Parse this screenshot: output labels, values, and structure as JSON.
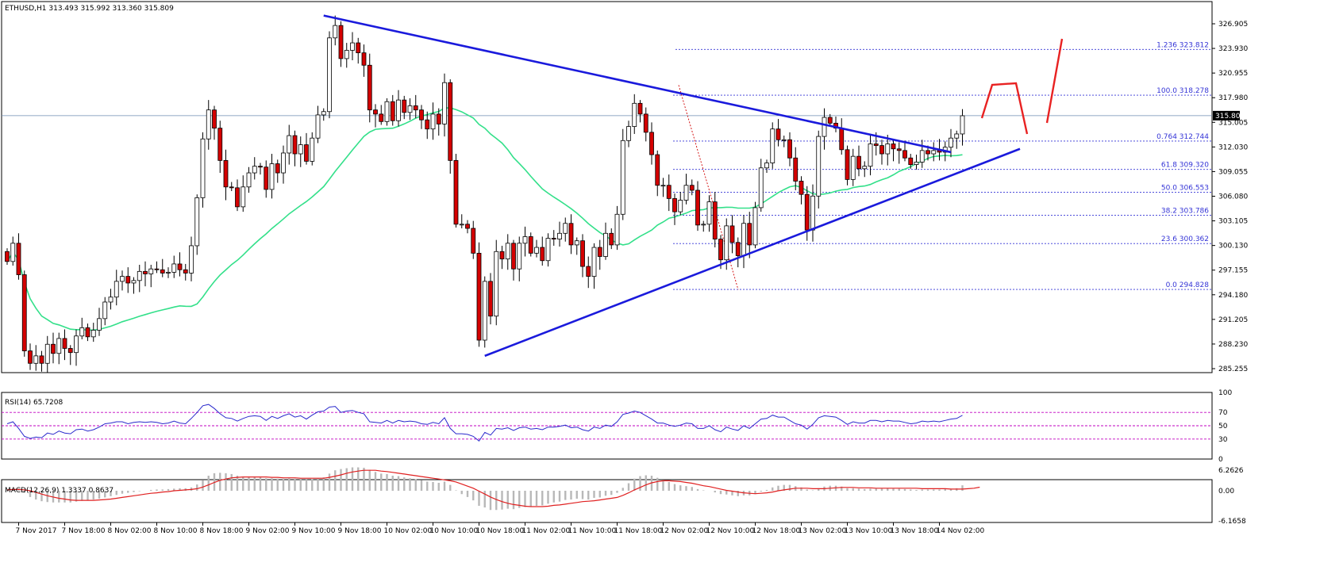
{
  "chart_data": {
    "type": "candlestick",
    "symbol_header": "ETHUSD,H1  313.493 315.992 313.360 315.809",
    "current_price": "315.809",
    "price_axis": {
      "ticks": [
        "326.905",
        "323.930",
        "320.955",
        "317.980",
        "315.005",
        "312.030",
        "309.055",
        "306.080",
        "303.105",
        "300.130",
        "297.155",
        "294.180",
        "291.205",
        "288.230",
        "285.255"
      ],
      "ylim": [
        285.255,
        326.905
      ]
    },
    "x_ticks": [
      "7 Nov 2017",
      "7 Nov 18:00",
      "8 Nov 02:00",
      "8 Nov 10:00",
      "8 Nov 18:00",
      "9 Nov 02:00",
      "9 Nov 10:00",
      "9 Nov 18:00",
      "10 Nov 02:00",
      "10 Nov 10:00",
      "10 Nov 18:00",
      "11 Nov 02:00",
      "11 Nov 10:00",
      "11 Nov 18:00",
      "12 Nov 02:00",
      "12 Nov 10:00",
      "12 Nov 18:00",
      "13 Nov 02:00",
      "13 Nov 10:00",
      "13 Nov 18:00",
      "14 Nov 02:00"
    ],
    "fib_levels": [
      {
        "label": "1.236 323.812",
        "value": 323.812
      },
      {
        "label": "100.0 318.278",
        "value": 318.278
      },
      {
        "label": "0.764 312.744",
        "value": 312.744
      },
      {
        "label": "61.8 309.320",
        "value": 309.32
      },
      {
        "label": "50.0 306.553",
        "value": 306.553
      },
      {
        "label": "38.2 303.786",
        "value": 303.786
      },
      {
        "label": "23.6 300.362",
        "value": 300.362
      },
      {
        "label": "0.0 294.828",
        "value": 294.828
      }
    ],
    "closes": [
      298.2,
      300.4,
      296.6,
      287.4,
      285.9,
      286.8,
      285.9,
      288.2,
      287.1,
      288.9,
      287.7,
      287.2,
      289.2,
      290.2,
      289.1,
      289.9,
      291.3,
      293.3,
      293.9,
      295.8,
      296.4,
      295.6,
      295.9,
      297.0,
      296.7,
      297.3,
      297.2,
      296.8,
      296.9,
      297.9,
      297.2,
      296.8,
      300.1,
      305.9,
      313.0,
      316.5,
      314.3,
      310.4,
      307.2,
      307.1,
      304.8,
      307.2,
      308.9,
      309.7,
      309.6,
      306.9,
      310.0,
      308.9,
      311.3,
      313.4,
      311.2,
      312.3,
      310.3,
      313.1,
      315.9,
      316.3,
      325.2,
      326.7,
      322.7,
      323.7,
      324.6,
      323.4,
      321.9,
      316.5,
      316.0,
      315.1,
      317.5,
      315.2,
      317.7,
      316.2,
      317.0,
      316.5,
      315.3,
      314.2,
      316.0,
      314.8,
      319.8,
      310.4,
      302.7,
      302.7,
      302.2,
      299.2,
      288.7,
      295.8,
      291.6,
      299.4,
      298.5,
      300.4,
      297.3,
      300.4,
      301.2,
      299.2,
      299.9,
      298.3,
      301.0,
      300.9,
      301.6,
      302.8,
      300.2,
      300.7,
      297.6,
      296.4,
      299.9,
      298.8,
      301.6,
      300.2,
      303.9,
      312.8,
      314.5,
      317.3,
      316.0,
      313.8,
      311.1,
      307.4,
      307.4,
      305.8,
      304.2,
      305.6,
      307.4,
      306.8,
      302.6,
      302.7,
      305.4,
      300.9,
      298.4,
      302.5,
      300.5,
      298.9,
      302.8,
      300.2,
      304.7,
      309.5,
      310.1,
      314.2,
      312.9,
      312.9,
      310.7,
      307.9,
      306.3,
      302.0,
      306.1,
      313.3,
      315.6,
      314.9,
      314.3,
      311.7,
      308.1,
      310.9,
      309.4,
      309.7,
      312.4,
      312.2,
      311.2,
      312.4,
      311.8,
      311.6,
      310.7,
      309.9,
      310.2,
      311.6,
      311.2,
      311.6,
      311.4,
      312.0,
      313.1,
      313.6,
      315.8
    ],
    "rsi": {
      "label": "RSI(14) 65.7208",
      "ticks": [
        "100",
        "70",
        "50",
        "30",
        "0"
      ],
      "levels": [
        70,
        50,
        30
      ],
      "values": [
        53,
        56,
        46,
        34,
        31,
        33,
        32,
        39,
        37,
        42,
        39,
        38,
        44,
        45,
        42,
        44,
        48,
        53,
        54,
        56,
        56,
        53,
        55,
        56,
        55,
        56,
        55,
        53,
        54,
        57,
        54,
        53,
        61,
        70,
        80,
        82,
        76,
        68,
        62,
        61,
        57,
        61,
        64,
        65,
        64,
        58,
        64,
        61,
        65,
        68,
        63,
        65,
        60,
        66,
        71,
        72,
        78,
        79,
        70,
        72,
        73,
        70,
        68,
        56,
        55,
        54,
        58,
        54,
        58,
        56,
        57,
        56,
        53,
        52,
        55,
        53,
        62,
        46,
        38,
        38,
        37,
        34,
        27,
        40,
        36,
        46,
        45,
        47,
        43,
        47,
        48,
        45,
        46,
        44,
        48,
        48,
        49,
        51,
        47,
        48,
        44,
        42,
        48,
        46,
        51,
        49,
        56,
        67,
        69,
        72,
        70,
        65,
        60,
        54,
        54,
        51,
        49,
        51,
        54,
        53,
        46,
        46,
        50,
        44,
        41,
        48,
        45,
        43,
        50,
        46,
        53,
        60,
        61,
        66,
        63,
        63,
        58,
        53,
        51,
        45,
        52,
        62,
        65,
        64,
        63,
        58,
        52,
        56,
        54,
        54,
        58,
        58,
        56,
        58,
        57,
        57,
        55,
        53,
        54,
        57,
        56,
        57,
        56,
        58,
        60,
        61,
        65.7
      ]
    },
    "macd": {
      "label": "MACD(12,26,9) 1.3337 0.8637",
      "ticks": [
        "6.2626",
        "0.00",
        "-6.1658"
      ],
      "ylim": [
        -6.1658,
        6.2626
      ],
      "hist": [
        0.2,
        0.5,
        0.5,
        -0.5,
        -1.5,
        -2.1,
        -2.5,
        -2.7,
        -2.8,
        -2.8,
        -2.8,
        -2.8,
        -2.6,
        -2.4,
        -2.3,
        -2.1,
        -1.9,
        -1.6,
        -1.3,
        -1.0,
        -0.7,
        -0.5,
        -0.3,
        -0.1,
        0.0,
        0.2,
        0.3,
        0.3,
        0.4,
        0.5,
        0.6,
        0.6,
        0.8,
        1.5,
        2.6,
        3.6,
        4.2,
        4.3,
        4.2,
        4.0,
        3.6,
        3.4,
        3.3,
        3.3,
        3.3,
        3.0,
        3.0,
        2.9,
        2.9,
        3.0,
        2.9,
        2.9,
        2.7,
        2.8,
        3.0,
        3.2,
        4.1,
        4.9,
        5.2,
        5.4,
        5.6,
        5.6,
        5.5,
        5.0,
        4.5,
        4.1,
        4.0,
        3.6,
        3.5,
        3.2,
        3.0,
        2.8,
        2.5,
        2.2,
        2.1,
        1.9,
        2.2,
        1.4,
        0.1,
        -0.8,
        -1.5,
        -2.3,
        -3.6,
        -4.0,
        -4.6,
        -4.6,
        -4.5,
        -4.3,
        -4.4,
        -4.1,
        -3.9,
        -3.8,
        -3.6,
        -3.5,
        -3.1,
        -2.8,
        -2.6,
        -2.2,
        -2.1,
        -1.9,
        -2.0,
        -2.1,
        -1.7,
        -1.6,
        -1.2,
        -1.0,
        -0.5,
        0.7,
        1.8,
        2.9,
        3.5,
        3.7,
        3.6,
        3.1,
        2.6,
        2.1,
        1.6,
        1.3,
        1.1,
        0.9,
        0.4,
        0.1,
        0.0,
        -0.4,
        -0.8,
        -0.9,
        -1.1,
        -1.3,
        -1.1,
        -1.1,
        -0.8,
        -0.2,
        0.2,
        0.8,
        1.2,
        1.4,
        1.4,
        1.1,
        0.8,
        0.3,
        0.1,
        0.6,
        1.0,
        1.2,
        1.2,
        1.0,
        0.6,
        0.6,
        0.5,
        0.4,
        0.5,
        0.5,
        0.5,
        0.6,
        0.5,
        0.5,
        0.4,
        0.3,
        0.2,
        0.3,
        0.3,
        0.3,
        0.3,
        0.4,
        0.5,
        0.6,
        1.3
      ],
      "signal": [
        0.2,
        0.3,
        0.3,
        0.2,
        0.0,
        -0.4,
        -0.8,
        -1.2,
        -1.5,
        -1.8,
        -2.0,
        -2.2,
        -2.3,
        -2.3,
        -2.3,
        -2.3,
        -2.2,
        -2.1,
        -2.0,
        -1.8,
        -1.6,
        -1.4,
        -1.2,
        -1.0,
        -0.8,
        -0.6,
        -0.5,
        -0.3,
        -0.2,
        0.0,
        0.1,
        0.2,
        0.3,
        0.5,
        0.9,
        1.4,
        2.0,
        2.5,
        2.8,
        3.1,
        3.2,
        3.3,
        3.3,
        3.3,
        3.3,
        3.3,
        3.2,
        3.2,
        3.1,
        3.1,
        3.1,
        3.0,
        3.0,
        3.0,
        3.0,
        3.0,
        3.2,
        3.5,
        3.8,
        4.2,
        4.5,
        4.7,
        4.9,
        4.9,
        4.9,
        4.7,
        4.6,
        4.4,
        4.2,
        4.0,
        3.8,
        3.6,
        3.4,
        3.2,
        3.0,
        2.8,
        2.6,
        2.4,
        2.1,
        1.6,
        1.1,
        0.6,
        -0.1,
        -0.8,
        -1.5,
        -2.1,
        -2.6,
        -3.0,
        -3.3,
        -3.5,
        -3.7,
        -3.8,
        -3.8,
        -3.8,
        -3.7,
        -3.5,
        -3.4,
        -3.2,
        -3.0,
        -2.8,
        -2.6,
        -2.5,
        -2.4,
        -2.2,
        -2.0,
        -1.8,
        -1.6,
        -1.1,
        -0.5,
        0.2,
        0.8,
        1.4,
        1.9,
        2.2,
        2.4,
        2.4,
        2.3,
        2.2,
        2.0,
        1.8,
        1.5,
        1.2,
        1.0,
        0.7,
        0.4,
        0.1,
        -0.1,
        -0.3,
        -0.5,
        -0.6,
        -0.7,
        -0.6,
        -0.5,
        -0.3,
        0.0,
        0.2,
        0.4,
        0.6,
        0.6,
        0.6,
        0.5,
        0.5,
        0.5,
        0.6,
        0.7,
        0.8,
        0.8,
        0.8,
        0.7,
        0.7,
        0.7,
        0.6,
        0.6,
        0.6,
        0.6,
        0.6,
        0.6,
        0.6,
        0.6,
        0.5,
        0.5,
        0.5,
        0.5,
        0.5,
        0.4,
        0.4,
        0.4,
        0.5,
        0.6,
        0.86
      ]
    },
    "colors": {
      "up_candle": "#ffffff",
      "down_candle": "#d40000",
      "candle_outline": "#000000",
      "trendline": "#1a1adc",
      "moving_average": "#33e08a",
      "fib_line": "#3434d6",
      "projection": "#e82222",
      "rsi_line": "#2a2acc",
      "level_line": "#c000c0",
      "macd_hist": "#b8b8b8",
      "macd_signal": "#e02020",
      "price_line": "#6e8db0"
    }
  }
}
